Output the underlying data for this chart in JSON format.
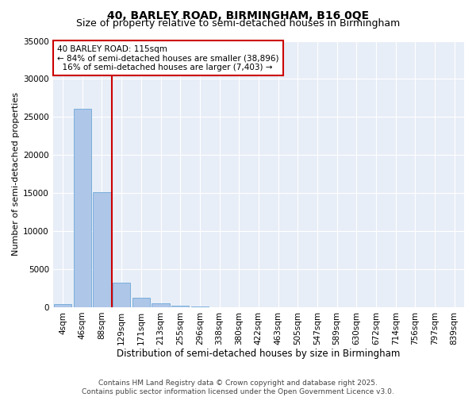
{
  "title": "40, BARLEY ROAD, BIRMINGHAM, B16 0QE",
  "subtitle": "Size of property relative to semi-detached houses in Birmingham",
  "xlabel": "Distribution of semi-detached houses by size in Birmingham",
  "ylabel": "Number of semi-detached properties",
  "categories": [
    "4sqm",
    "46sqm",
    "88sqm",
    "129sqm",
    "171sqm",
    "213sqm",
    "255sqm",
    "296sqm",
    "338sqm",
    "380sqm",
    "422sqm",
    "463sqm",
    "505sqm",
    "547sqm",
    "589sqm",
    "630sqm",
    "672sqm",
    "714sqm",
    "756sqm",
    "797sqm",
    "839sqm"
  ],
  "values": [
    400,
    26100,
    15100,
    3250,
    1200,
    480,
    200,
    100,
    0,
    0,
    0,
    0,
    0,
    0,
    0,
    0,
    0,
    0,
    0,
    0,
    0
  ],
  "bar_color": "#aec6e8",
  "bar_edge_color": "#5a9fd4",
  "vline_color": "#cc0000",
  "annotation_line1": "40 BARLEY ROAD: 115sqm",
  "annotation_line2": "← 84% of semi-detached houses are smaller (38,896)",
  "annotation_line3": "  16% of semi-detached houses are larger (7,403) →",
  "annotation_box_color": "#ffffff",
  "annotation_box_edge": "#cc0000",
  "ylim": [
    0,
    35000
  ],
  "yticks": [
    0,
    5000,
    10000,
    15000,
    20000,
    25000,
    30000,
    35000
  ],
  "background_color": "#e8eef7",
  "footer_line1": "Contains HM Land Registry data © Crown copyright and database right 2025.",
  "footer_line2": "Contains public sector information licensed under the Open Government Licence v3.0.",
  "title_fontsize": 10,
  "subtitle_fontsize": 9,
  "axis_fontsize": 8,
  "tick_fontsize": 7.5,
  "footer_fontsize": 6.5,
  "annot_fontsize": 7.5,
  "vline_bar_index": 2.5
}
